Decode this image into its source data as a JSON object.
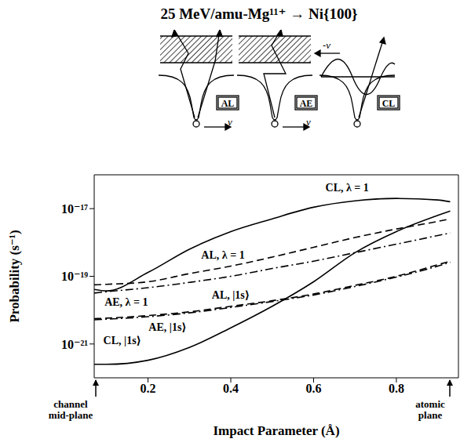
{
  "chart_data": {
    "type": "line",
    "title": "25 MeV/amu-Mg¹¹⁺ → Ni{100}",
    "x_label": "Impact Parameter (Å)",
    "y_label": "Probability (s⁻¹)",
    "log": "y",
    "grid": false,
    "xlim": [
      0.07,
      0.95
    ],
    "xticks": [
      0.2,
      0.4,
      0.6,
      0.8
    ],
    "ylim": [
      1e-22,
      1e-16
    ],
    "yticks": [
      {
        "value": 1e-17,
        "label": "10⁻¹⁷"
      },
      {
        "value": 1e-19,
        "label": "10⁻¹⁹"
      },
      {
        "value": 1e-21,
        "label": "10⁻²¹"
      }
    ],
    "x": [
      0.07,
      0.1,
      0.2,
      0.3,
      0.4,
      0.5,
      0.6,
      0.7,
      0.8,
      0.9,
      0.93
    ],
    "series": [
      {
        "name": "CL, λ = 1",
        "color": "#000000",
        "line_style": "solid",
        "values": [
          4.1e-20,
          3.7e-20,
          1.3e-19,
          6.3e-19,
          2.1e-18,
          5e-18,
          1.1e-17,
          1.7e-17,
          2e-17,
          1.8e-17,
          1.6e-17
        ]
      },
      {
        "name": "AL, λ = 1",
        "color": "#000000",
        "line_style": "dashed",
        "values": [
          5.6e-20,
          5.8e-20,
          6.9e-20,
          1.2e-19,
          2e-19,
          3.7e-19,
          7.2e-19,
          1.4e-18,
          2.5e-18,
          4.2e-18,
          5e-18
        ]
      },
      {
        "name": "AE, λ = 1",
        "color": "#000000",
        "line_style": "dashdot",
        "values": [
          3.2e-20,
          3.5e-20,
          4.6e-20,
          6.6e-20,
          1e-19,
          1.7e-19,
          2.8e-19,
          5e-19,
          8.9e-19,
          1.6e-18,
          1.9e-18
        ]
      },
      {
        "name": "AL, |1s⟩",
        "color": "#000000",
        "line_style": "dashed",
        "values": [
          5.6e-21,
          5.8e-21,
          6.9e-21,
          8.9e-21,
          1.3e-20,
          1.9e-20,
          3e-20,
          5.4e-20,
          1e-19,
          2.2e-19,
          2.8e-19
        ]
      },
      {
        "name": "AE, |1s⟩",
        "color": "#000000",
        "line_style": "dashdot",
        "values": [
          5.2e-21,
          5.4e-21,
          6.4e-21,
          8.3e-21,
          1.2e-20,
          1.8e-20,
          2.8e-20,
          5e-20,
          9.5e-20,
          2e-19,
          2.6e-19
        ]
      },
      {
        "name": "CL, |1s⟩",
        "color": "#000000",
        "line_style": "solid",
        "values": [
          2.5e-22,
          2.5e-22,
          3.3e-22,
          7.9e-22,
          3e-21,
          1.3e-20,
          6.9e-20,
          5e-19,
          2.1e-18,
          6.3e-18,
          8.5e-18
        ]
      }
    ],
    "annotations": [
      {
        "text": "channel mid-plane"
      },
      {
        "text": "atomic plane"
      }
    ],
    "schematics": [
      {
        "label": "AL",
        "velocity": "v"
      },
      {
        "label": "AE",
        "velocity": "v"
      },
      {
        "label": "CL",
        "velocity": "-v"
      }
    ]
  }
}
